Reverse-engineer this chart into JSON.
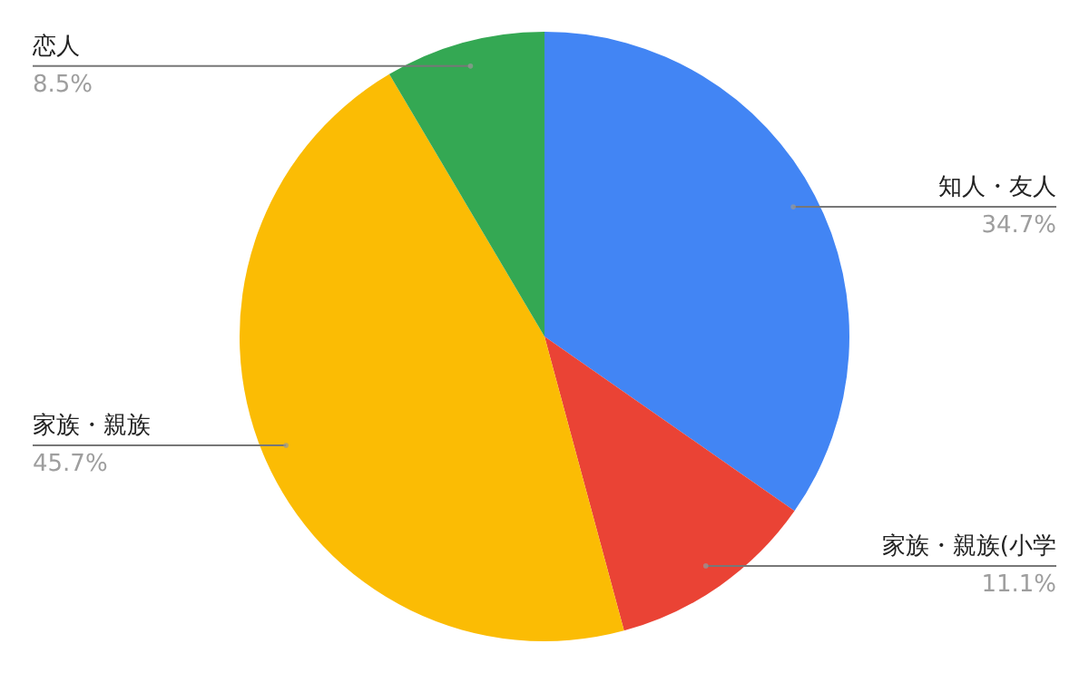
{
  "chart_data": {
    "type": "pie",
    "categories": [
      "知人・友人",
      "家族・親族(小学",
      "家族・親族",
      "恋人"
    ],
    "values": [
      34.7,
      11.1,
      45.7,
      8.5
    ],
    "colors": [
      "#4285f4",
      "#ea4335",
      "#fbbc04",
      "#34a853"
    ],
    "value_labels": [
      "34.7%",
      "11.1%",
      "45.7%",
      "8.5%"
    ]
  }
}
